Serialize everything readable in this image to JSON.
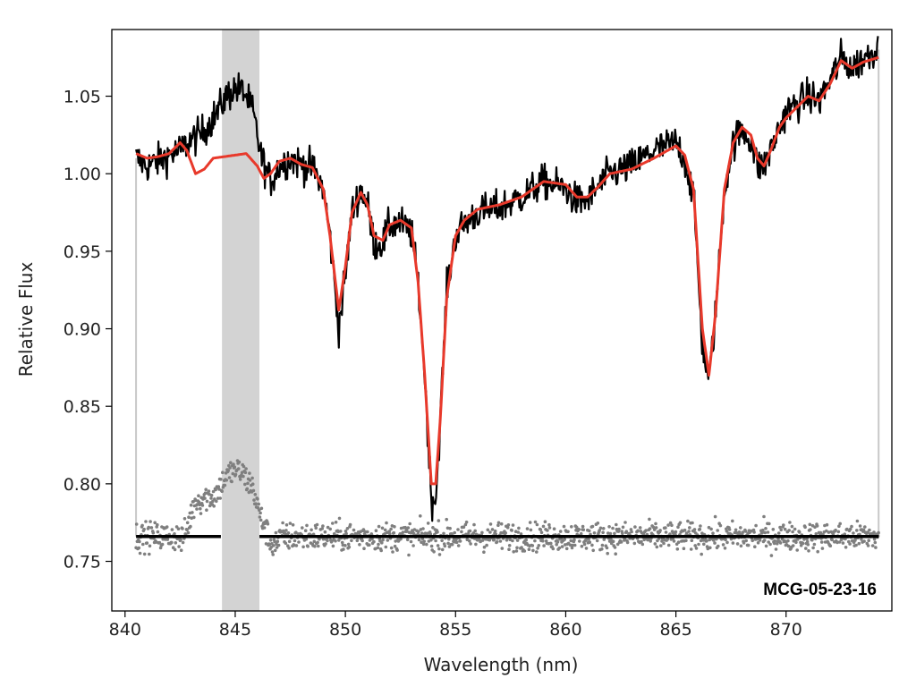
{
  "chart_data": {
    "type": "line",
    "xlabel": "Wavelength (nm)",
    "ylabel": "Relative Flux",
    "xlim": [
      839.4,
      874.8
    ],
    "ylim": [
      0.718,
      1.093
    ],
    "xticks": [
      840,
      845,
      850,
      855,
      860,
      865,
      870
    ],
    "yticks": [
      0.75,
      0.8,
      0.85,
      0.9,
      0.95,
      1.0,
      1.05
    ],
    "grid": false,
    "annotation": "MCG-05-23-16",
    "masked_region": [
      844.4,
      846.1
    ],
    "wavelength_range": [
      840.5,
      874.2
    ],
    "residual_baseline": 0.766,
    "model": {
      "color": "#e8392b",
      "x": [
        840.5,
        841.0,
        841.5,
        842.0,
        842.5,
        842.8,
        843.2,
        843.6,
        844.0,
        844.5,
        845.0,
        845.5,
        846.0,
        846.3,
        846.6,
        847.0,
        847.5,
        848.0,
        848.5,
        849.0,
        849.3,
        849.7,
        850.0,
        850.3,
        850.7,
        851.0,
        851.3,
        851.7,
        852.0,
        852.5,
        853.0,
        853.3,
        853.6,
        853.9,
        854.1,
        854.3,
        854.6,
        855.0,
        855.4,
        856.0,
        857.0,
        858.0,
        859.0,
        860.0,
        860.5,
        861.0,
        861.5,
        862.0,
        863.0,
        864.0,
        865.0,
        865.4,
        865.8,
        866.2,
        866.5,
        866.8,
        867.2,
        867.6,
        868.0,
        868.4,
        868.7,
        869.0,
        869.3,
        869.7,
        870.0,
        870.5,
        871.0,
        871.5,
        872.0,
        872.5,
        873.0,
        873.5,
        874.2
      ],
      "y": [
        1.013,
        1.01,
        1.011,
        1.013,
        1.02,
        1.015,
        1.0,
        1.003,
        1.01,
        1.011,
        1.012,
        1.013,
        1.005,
        0.997,
        1.0,
        1.008,
        1.01,
        1.006,
        1.004,
        0.99,
        0.96,
        0.912,
        0.94,
        0.975,
        0.988,
        0.98,
        0.96,
        0.957,
        0.967,
        0.97,
        0.965,
        0.93,
        0.87,
        0.8,
        0.8,
        0.84,
        0.92,
        0.96,
        0.97,
        0.977,
        0.98,
        0.985,
        0.995,
        0.993,
        0.985,
        0.985,
        0.992,
        1.0,
        1.003,
        1.01,
        1.018,
        1.012,
        0.99,
        0.9,
        0.87,
        0.91,
        0.99,
        1.02,
        1.03,
        1.025,
        1.01,
        1.005,
        1.015,
        1.03,
        1.036,
        1.043,
        1.05,
        1.047,
        1.058,
        1.073,
        1.068,
        1.072,
        1.075
      ]
    },
    "observed": {
      "color": "#000000",
      "x": [
        840.5,
        841.0,
        841.5,
        842.0,
        842.5,
        843.0,
        843.4,
        843.8,
        844.2,
        844.6,
        845.0,
        845.4,
        845.8,
        846.2,
        846.6,
        847.0,
        847.5,
        848.0,
        848.5,
        849.0,
        849.3,
        849.7,
        850.0,
        850.3,
        850.7,
        851.0,
        851.3,
        851.7,
        852.0,
        852.5,
        853.0,
        853.3,
        853.6,
        853.9,
        854.1,
        854.3,
        854.6,
        855.0,
        855.4,
        856.0,
        857.0,
        858.0,
        859.0,
        860.0,
        860.5,
        861.0,
        861.5,
        862.0,
        863.0,
        864.0,
        865.0,
        865.4,
        865.8,
        866.2,
        866.5,
        866.8,
        867.2,
        867.6,
        868.0,
        868.4,
        868.7,
        869.0,
        869.3,
        869.7,
        870.0,
        870.5,
        871.0,
        871.5,
        872.0,
        872.5,
        873.0,
        873.5,
        874.2
      ],
      "y": [
        1.01,
        1.005,
        1.008,
        1.012,
        1.015,
        1.022,
        1.025,
        1.032,
        1.04,
        1.05,
        1.055,
        1.053,
        1.04,
        1.01,
        0.995,
        1.005,
        1.01,
        1.006,
        1.004,
        0.99,
        0.96,
        0.9,
        0.935,
        0.975,
        0.99,
        0.98,
        0.955,
        0.955,
        0.967,
        0.968,
        0.962,
        0.93,
        0.87,
        0.79,
        0.79,
        0.84,
        0.925,
        0.96,
        0.968,
        0.975,
        0.978,
        0.985,
        0.995,
        0.99,
        0.982,
        0.983,
        0.992,
        1.0,
        1.005,
        1.015,
        1.02,
        1.01,
        0.985,
        0.89,
        0.866,
        0.91,
        0.99,
        1.02,
        1.028,
        1.022,
        1.005,
        1.005,
        1.015,
        1.03,
        1.04,
        1.045,
        1.05,
        1.047,
        1.06,
        1.075,
        1.068,
        1.074,
        1.082
      ]
    },
    "residuals": {
      "color": "#7f7f7f",
      "note": "scatter residuals around baseline, offset to ~0.766"
    }
  }
}
